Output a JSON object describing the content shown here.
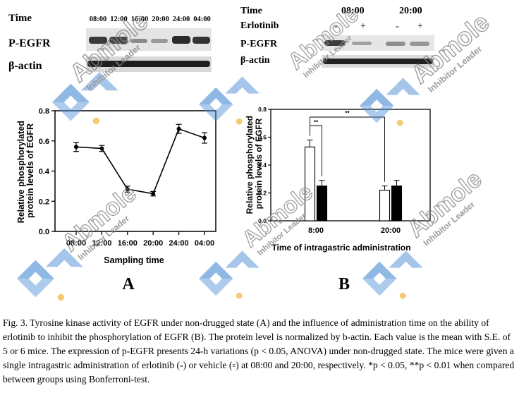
{
  "blots": {
    "A": {
      "time_label": "Time",
      "times": [
        "08:00",
        "12:00",
        "16:00",
        "20:00",
        "24:00",
        "04:00"
      ],
      "rows": [
        "P-EGFR",
        "β-actin"
      ]
    },
    "B": {
      "time_label": "Time",
      "times": [
        "08:00",
        "20:00"
      ],
      "treatment_label": "Erlotinib",
      "treatment_marks": [
        "-",
        "+",
        "-",
        "+"
      ],
      "rows": [
        "P-EGFR",
        "β-actin"
      ]
    }
  },
  "panel_letters": {
    "A": "A",
    "B": "B"
  },
  "watermark": {
    "brand": "Abmole",
    "tagline": "Inhibitor Leader"
  },
  "caption": "Fig. 3. Tyrosine kinase activity of EGFR under non-drugged state (A) and the influence of administration time on the ability of erlotinib to inhibit the phosphorylation of EGFR (B). The protein level is normalized by b-actin. Each value is the mean with S.E. of 5 or 6 mice. The expression of p-EGFR presents 24-h variations (p < 0.05, ANOVA) under non-drugged state. The mice were given a single intragastric administration of erlotinib (-) or vehicle (▫) at 08:00 and 20:00, respectively. *p < 0.05, **p < 0.01 when compared between groups using Bonferroni-test.",
  "colors": {
    "ink": "#000000",
    "watermark_blue": "#4f8fd6",
    "watermark_dot": "#f2c25c",
    "watermark_text": "#8a8a8a"
  },
  "chart_data": [
    {
      "type": "line",
      "xlabel": "Sampling time",
      "ylabel": "Relative phosphorylated protein levels of EGFR",
      "categories": [
        "08:00",
        "12:00",
        "16:00",
        "20:00",
        "24:00",
        "04:00"
      ],
      "yticks": [
        "0.0",
        "0.2",
        "0.4",
        "0.6",
        "0.8"
      ],
      "ylim": [
        0,
        0.8
      ],
      "series": [
        {
          "values": [
            0.56,
            0.55,
            0.28,
            0.25,
            0.68,
            0.62
          ],
          "errors": [
            0.03,
            0.02,
            0.02,
            0.015,
            0.03,
            0.035
          ]
        }
      ],
      "grid": false
    },
    {
      "type": "bar",
      "xlabel": "Time of intragastric administration",
      "ylabel": "Relative phosphorylated protein levels of EGFR",
      "categories": [
        "8:00",
        "20:00"
      ],
      "yticks": [
        "0.0",
        "0.2",
        "0.4",
        "0.6",
        "0.8"
      ],
      "ylim": [
        0,
        0.8
      ],
      "series": [
        {
          "fill": "white",
          "values": [
            0.53,
            0.22
          ],
          "errors": [
            0.05,
            0.03
          ]
        },
        {
          "fill": "black",
          "values": [
            0.25,
            0.25
          ],
          "errors": [
            0.04,
            0.04
          ]
        }
      ],
      "annotations": [
        "**",
        "**"
      ],
      "grid": false
    }
  ]
}
